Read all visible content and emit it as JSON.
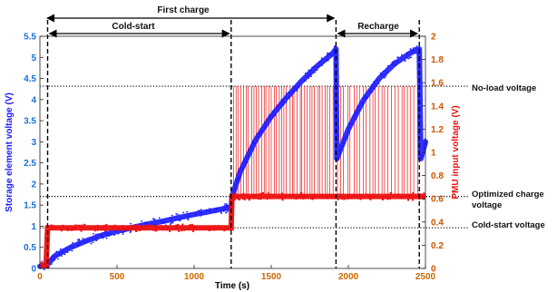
{
  "chart_data": {
    "type": "line",
    "xlabel": "Time (s)",
    "ylabel": "Storage element voltage (V)",
    "y2label": "PMU input voltage (V)",
    "xlim": [
      0,
      2500
    ],
    "ylim": [
      0,
      5.5
    ],
    "y2lim": [
      0,
      2
    ],
    "x_ticks": [
      0,
      500,
      1000,
      1500,
      2000,
      2500
    ],
    "y_ticks": [
      0,
      0.5,
      1,
      1.5,
      2,
      2.5,
      3,
      3.5,
      4,
      4.5,
      5,
      5.5
    ],
    "y_tick_labels": [
      "0",
      "0.5",
      "1",
      "1.5",
      "2",
      "2.5",
      "3",
      "3.5",
      "4",
      "4.5",
      "5",
      "5.5"
    ],
    "y2_ticks": [
      0,
      0.2,
      0.4,
      0.6,
      0.8,
      1,
      1.2,
      1.4,
      1.6,
      1.8,
      2
    ],
    "y2_tick_labels": [
      "0",
      "0.2",
      "0.4",
      "0.6",
      "0.8",
      "1",
      "1.2",
      "1.4",
      "1.6",
      "1.8",
      "2"
    ],
    "grid": false,
    "colors": {
      "storage": "#1a1aff",
      "pmu": "#ee1111",
      "reference": "#000000"
    },
    "reference_lines": [
      {
        "label": "No-load voltage",
        "y": 1.57,
        "axis": "right"
      },
      {
        "label": "Optimized charge voltage",
        "y": 0.62,
        "axis": "right"
      },
      {
        "label": "Cold-start voltage",
        "y": 0.35,
        "axis": "right"
      }
    ],
    "phase_markers_x": [
      50,
      1240,
      1920,
      2460
    ],
    "phases": [
      {
        "label": "First charge",
        "x_start": 0,
        "x_end": 1920
      },
      {
        "label": "Cold-start",
        "x_start": 50,
        "x_end": 1240
      },
      {
        "label": "Recharge",
        "x_start": 1920,
        "x_end": 2460
      }
    ],
    "series": [
      {
        "axis": "left",
        "x": [
          0,
          50,
          100,
          200,
          300,
          400,
          500,
          600,
          700,
          800,
          900,
          1000,
          1100,
          1200,
          1240,
          1245,
          1300,
          1400,
          1500,
          1600,
          1700,
          1800,
          1900,
          1920,
          1925,
          2000,
          2100,
          2200,
          2300,
          2400,
          2460,
          2470,
          2500
        ],
        "y": [
          0.05,
          0.1,
          0.3,
          0.5,
          0.65,
          0.78,
          0.88,
          0.97,
          1.05,
          1.12,
          1.2,
          1.28,
          1.35,
          1.42,
          1.45,
          1.7,
          2.3,
          3.05,
          3.6,
          4.05,
          4.45,
          4.8,
          5.1,
          5.2,
          2.6,
          3.3,
          4.0,
          4.5,
          4.85,
          5.1,
          5.2,
          2.6,
          3.0
        ]
      },
      {
        "axis": "right",
        "x": [
          0,
          40,
          50,
          1240,
          1245,
          2500
        ],
        "y": [
          0.03,
          0.03,
          0.35,
          0.35,
          0.62,
          0.62
        ]
      }
    ]
  }
}
